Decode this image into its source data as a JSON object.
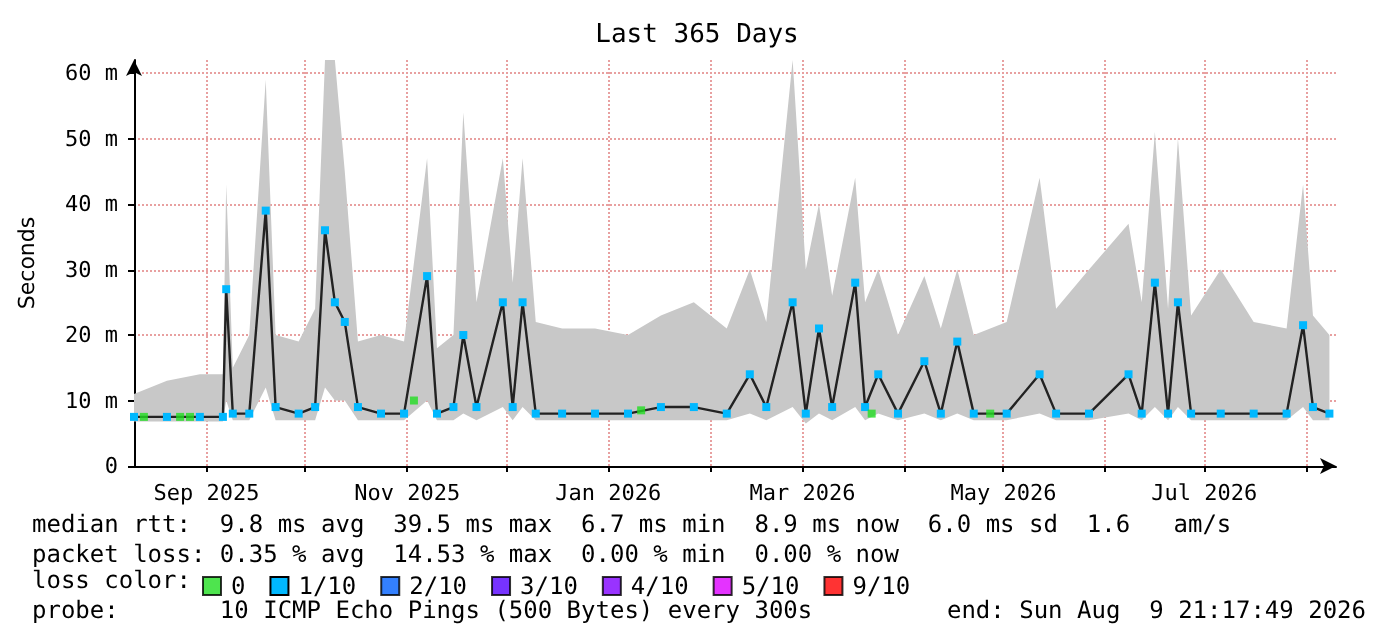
{
  "chart_data": {
    "type": "line",
    "title": "Last 365 Days",
    "ylabel": "Seconds",
    "legend_title": "loss color:",
    "legend": "bottom left",
    "grid": true,
    "marker": "square",
    "line_style": "solid",
    "xlim": [
      "2025-08-10",
      "2026-08-10"
    ],
    "xticks": [
      {
        "value": "2025-09-01",
        "label": "Sep 2025"
      },
      {
        "value": "2025-10-01",
        "label": null
      },
      {
        "value": "2025-11-01",
        "label": "Nov 2025"
      },
      {
        "value": "2025-12-01",
        "label": null
      },
      {
        "value": "2026-01-01",
        "label": "Jan 2026"
      },
      {
        "value": "2026-02-01",
        "label": null
      },
      {
        "value": "2026-03-01",
        "label": "Mar 2026"
      },
      {
        "value": "2026-04-01",
        "label": null
      },
      {
        "value": "2026-05-01",
        "label": "May 2026"
      },
      {
        "value": "2026-06-01",
        "label": null
      },
      {
        "value": "2026-07-01",
        "label": "Jul 2026"
      },
      {
        "value": "2026-08-01",
        "label": null
      }
    ],
    "ylim": [
      0,
      62
    ],
    "yticks": [
      0,
      {
        "value": 10,
        "label": "10 m"
      },
      {
        "value": 20,
        "label": "20 m"
      },
      {
        "value": 30,
        "label": "30 m"
      },
      {
        "value": 40,
        "label": "40 m"
      },
      {
        "value": 50,
        "label": "50 m"
      },
      {
        "value": 60,
        "label": "60 m"
      }
    ],
    "annotations": [
      "median rtt:  9.8 ms avg  39.5 ms max  6.7 ms min  8.9 ms now  6.0 ms sd  1.6   am/s",
      "packet loss: 0.35 % avg  14.53 % max  0.00 % min  0.00 % now",
      "probe:       10 ICMP Echo Pings (500 Bytes) every 300s",
      "end: Sun Aug  9 21:17:49 2026"
    ],
    "series": [
      {
        "name": "1/10",
        "color": "#00b8ff",
        "x": [
          "2025-08-10",
          "2025-08-20",
          "2025-08-30",
          "2025-09-06",
          "2025-09-07",
          "2025-09-09",
          "2025-09-14",
          "2025-09-19",
          "2025-09-22",
          "2025-09-29",
          "2025-10-04",
          "2025-10-07",
          "2025-10-10",
          "2025-10-13",
          "2025-10-17",
          "2025-10-24",
          "2025-10-31",
          "2025-11-07",
          "2025-11-10",
          "2025-11-15",
          "2025-11-18",
          "2025-11-22",
          "2025-11-30",
          "2025-12-03",
          "2025-12-06",
          "2025-12-10",
          "2025-12-18",
          "2025-12-28",
          "2026-01-07",
          "2026-01-17",
          "2026-01-27",
          "2026-02-06",
          "2026-02-13",
          "2026-02-18",
          "2026-02-26",
          "2026-03-02",
          "2026-03-06",
          "2026-03-10",
          "2026-03-17",
          "2026-03-20",
          "2026-03-24",
          "2026-03-30",
          "2026-04-07",
          "2026-04-12",
          "2026-04-17",
          "2026-04-22",
          "2026-05-02",
          "2026-05-12",
          "2026-05-17",
          "2026-05-27",
          "2026-06-08",
          "2026-06-12",
          "2026-06-16",
          "2026-06-20",
          "2026-06-23",
          "2026-06-27",
          "2026-07-06",
          "2026-07-16",
          "2026-07-26",
          "2026-07-31",
          "2026-08-03",
          "2026-08-08"
        ],
        "values": [
          7.5,
          7.5,
          7.5,
          7.5,
          27,
          8,
          8,
          39,
          9,
          8,
          9,
          36,
          25,
          22,
          9,
          8,
          8,
          29,
          8,
          9,
          20,
          9,
          25,
          9,
          25,
          8,
          8,
          8,
          8,
          9,
          9,
          8,
          14,
          9,
          25,
          8,
          21,
          9,
          28,
          9,
          14,
          8,
          16,
          8,
          19,
          8,
          8,
          14,
          8,
          8,
          14,
          8,
          28,
          8,
          25,
          8,
          8,
          8,
          8,
          21.5,
          9,
          8
        ],
        "lower": [
          6.8,
          6.8,
          6.8,
          6.8,
          10,
          7,
          7,
          12,
          7,
          7,
          7,
          12,
          10,
          10,
          7,
          7,
          7,
          10,
          7,
          7,
          8,
          7,
          9,
          7,
          9,
          7,
          7,
          7,
          7,
          7,
          7,
          7,
          8,
          7,
          9,
          6.5,
          8,
          7,
          9,
          7,
          8,
          7,
          8,
          7,
          8,
          7,
          7,
          8,
          7,
          7,
          8,
          7,
          9,
          7,
          9,
          7,
          7,
          7,
          7,
          9,
          7,
          7
        ],
        "upper": [
          11,
          13,
          14,
          14,
          43,
          15,
          20,
          59,
          20,
          19,
          24,
          62,
          62,
          45,
          19,
          20,
          19,
          47,
          18,
          20,
          54,
          25,
          47,
          28,
          47,
          22,
          21,
          21,
          20,
          23,
          25,
          21,
          30,
          22,
          62,
          30,
          40,
          26,
          44,
          25,
          30,
          20,
          29,
          21,
          30,
          20,
          22,
          44,
          24,
          30,
          37,
          25,
          51,
          24,
          50,
          23,
          30,
          22,
          21,
          43,
          23,
          20
        ]
      },
      {
        "name": "0",
        "color": "#22dd22",
        "type": "scatter",
        "x": [
          "2025-08-13",
          "2025-08-24",
          "2025-08-27",
          "2025-11-03",
          "2026-01-11",
          "2026-03-22",
          "2026-04-27"
        ],
        "values": [
          7.5,
          7.5,
          7.5,
          10,
          8.5,
          8,
          8
        ]
      },
      {
        "name": "2/10",
        "color": "#0060ff",
        "type": "scatter"
      },
      {
        "name": "3/10",
        "color": "#5500ff",
        "type": "scatter"
      },
      {
        "name": "4/10",
        "color": "#8000ff",
        "type": "scatter"
      },
      {
        "name": "5/10",
        "color": "#dd00ff",
        "type": "scatter"
      },
      {
        "name": "9/10",
        "color": "#ff0000",
        "type": "scatter"
      }
    ]
  }
}
